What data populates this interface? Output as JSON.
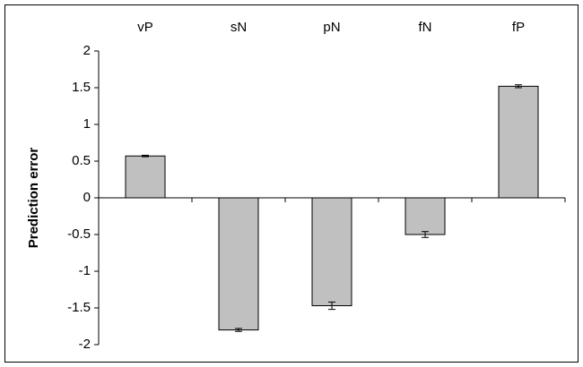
{
  "chart_data": {
    "type": "bar",
    "y_label": "Prediction error",
    "categories": [
      "vP",
      "sN",
      "pN",
      "fN",
      "fP"
    ],
    "values": [
      0.57,
      -1.8,
      -1.47,
      -0.5,
      1.52
    ],
    "errors": [
      0.01,
      0.02,
      0.05,
      0.04,
      0.02
    ],
    "color": "#c0c0c0",
    "ylim": [
      -2,
      2
    ],
    "yticks": [
      -2,
      -1.5,
      -1,
      -0.5,
      0,
      0.5,
      1,
      1.5,
      2
    ],
    "grid": false
  }
}
